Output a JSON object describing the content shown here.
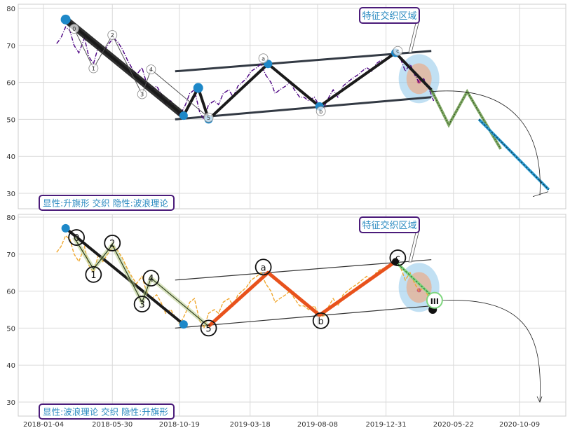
{
  "chart_data": [
    {
      "type": "line",
      "panel": "top",
      "title": "",
      "annotation_box": "显性:升旗形 交织 隐性:波浪理论",
      "callout": "特征交织区域",
      "ylim": [
        26,
        81
      ],
      "y_ticks": [
        30,
        40,
        50,
        60,
        70,
        80
      ],
      "grid": true,
      "series": [
        {
          "role": "price",
          "style": "dash-dot",
          "color": "#4b0082",
          "x": [
            "2018-02-01",
            "2018-02-10",
            "2018-02-20",
            "2018-03-01",
            "2018-03-10",
            "2018-03-20",
            "2018-04-01",
            "2018-04-10",
            "2018-04-20",
            "2018-05-01",
            "2018-05-10",
            "2018-05-20",
            "2018-06-01",
            "2018-06-10",
            "2018-06-20",
            "2018-07-01",
            "2018-07-10",
            "2018-07-20",
            "2018-08-01",
            "2018-08-10",
            "2018-08-20",
            "2018-09-01",
            "2018-09-10",
            "2018-09-20",
            "2018-10-01",
            "2018-10-10",
            "2018-10-20",
            "2018-11-01",
            "2018-11-10",
            "2018-11-20",
            "2018-12-01",
            "2018-12-10",
            "2018-12-20",
            "2019-01-01",
            "2019-01-10",
            "2019-01-20",
            "2019-02-01",
            "2019-02-10",
            "2019-02-20",
            "2019-03-01",
            "2019-03-10",
            "2019-03-20",
            "2019-04-01",
            "2019-04-10",
            "2019-04-20",
            "2019-05-01",
            "2019-05-10",
            "2019-05-20",
            "2019-06-01",
            "2019-06-10",
            "2019-06-20",
            "2019-07-01",
            "2019-07-10",
            "2019-07-20",
            "2019-08-01",
            "2019-08-10",
            "2019-08-20",
            "2019-09-01",
            "2019-09-10",
            "2019-09-20",
            "2019-10-01",
            "2019-10-10",
            "2019-10-20",
            "2019-11-01",
            "2019-11-10",
            "2019-11-20",
            "2019-12-01",
            "2019-12-10",
            "2019-12-20",
            "2020-01-01",
            "2020-01-10",
            "2020-01-20",
            "2020-02-01",
            "2020-02-10",
            "2020-02-20",
            "2020-03-01",
            "2020-03-10",
            "2020-03-20",
            "2020-04-01",
            "2020-04-10"
          ],
          "y": [
            70.5,
            72,
            75,
            74,
            70,
            68,
            72,
            67,
            65,
            70,
            68,
            70,
            72,
            71,
            69,
            66,
            64,
            62,
            64,
            60,
            58,
            59,
            57,
            54,
            55,
            53,
            51,
            54,
            57,
            58,
            52,
            50,
            54,
            55,
            54,
            57,
            58,
            56,
            59,
            60,
            61,
            63,
            64,
            65,
            62,
            60,
            57,
            58,
            59,
            60,
            58,
            56,
            56,
            55,
            56,
            54,
            53,
            56,
            58,
            56,
            59,
            60,
            61,
            62,
            63,
            64,
            63,
            65,
            66,
            66,
            67,
            68,
            66,
            63,
            65,
            62,
            60,
            61,
            58,
            55
          ]
        },
        {
          "role": "wave_path",
          "style": "thick",
          "color": "#1a1a1a",
          "x": [
            "2018-02-20",
            "2018-10-28",
            "2018-11-28",
            "2018-12-20",
            "2019-04-25",
            "2019-08-12",
            "2020-01-20",
            "2020-04-05"
          ],
          "y": [
            77,
            51,
            58.5,
            50,
            65,
            53.5,
            68,
            58
          ]
        },
        {
          "role": "flag_upper",
          "color": "#333a44",
          "x": [
            "2018-10-10",
            "2020-04-05"
          ],
          "y": [
            63,
            68.5
          ]
        },
        {
          "role": "flag_lower",
          "color": "#333a44",
          "x": [
            "2018-10-10",
            "2020-04-05"
          ],
          "y": [
            50,
            56
          ]
        },
        {
          "role": "projection_green",
          "style": "dotted",
          "color": "#a0c878",
          "x": [
            "2020-04-05",
            "2020-05-12",
            "2020-06-20",
            "2020-08-30"
          ],
          "y": [
            58,
            48.5,
            57.5,
            42
          ]
        },
        {
          "role": "projection_blue",
          "style": "dashed",
          "color": "#2b9bd1",
          "x": [
            "2020-07-15",
            "2020-12-10"
          ],
          "y": [
            50,
            31
          ]
        }
      ],
      "points": [
        {
          "x": "2018-02-20",
          "y": 76.8,
          "label": ""
        },
        {
          "x": "2018-03-10",
          "y": 74.5,
          "label": "0"
        },
        {
          "x": "2018-04-20",
          "y": 63.8,
          "label": "1"
        },
        {
          "x": "2018-05-30",
          "y": 72.8,
          "label": "2"
        },
        {
          "x": "2018-08-01",
          "y": 56.8,
          "label": "3"
        },
        {
          "x": "2018-08-20",
          "y": 63.5,
          "label": "4"
        },
        {
          "x": "2018-12-20",
          "y": 50.5,
          "label": "5"
        },
        {
          "x": "2019-04-15",
          "y": 66.5,
          "label": "a"
        },
        {
          "x": "2019-08-15",
          "y": 52.2,
          "label": "b"
        },
        {
          "x": "2020-01-25",
          "y": 68.5,
          "label": "c"
        }
      ]
    },
    {
      "type": "line",
      "panel": "bottom",
      "title": "",
      "annotation_box": "显性:波浪理论 交织 隐性:升旗形",
      "callout": "特征交织区域",
      "ylim": [
        26,
        81
      ],
      "y_ticks": [
        30,
        40,
        50,
        60,
        70,
        80
      ],
      "x_ticks": [
        "2018-01-04",
        "2018-05-30",
        "2018-10-19",
        "2019-03-18",
        "2019-08-08",
        "2019-12-31",
        "2020-05-22",
        "2020-10-09"
      ],
      "grid": true,
      "series": [
        {
          "role": "price",
          "style": "dashed",
          "color": "#f0a830",
          "x": [
            "2018-02-01",
            "2018-02-10",
            "2018-02-20",
            "2018-03-01",
            "2018-03-10",
            "2018-03-20",
            "2018-04-01",
            "2018-04-10",
            "2018-04-20",
            "2018-05-01",
            "2018-05-10",
            "2018-05-20",
            "2018-06-01",
            "2018-06-10",
            "2018-06-20",
            "2018-07-01",
            "2018-07-10",
            "2018-07-20",
            "2018-08-01",
            "2018-08-10",
            "2018-08-20",
            "2018-09-01",
            "2018-09-10",
            "2018-09-20",
            "2018-10-01",
            "2018-10-10",
            "2018-10-20",
            "2018-11-01",
            "2018-11-10",
            "2018-11-20",
            "2018-12-01",
            "2018-12-10",
            "2018-12-20",
            "2019-01-01",
            "2019-01-10",
            "2019-01-20",
            "2019-02-01",
            "2019-02-10",
            "2019-02-20",
            "2019-03-01",
            "2019-03-10",
            "2019-03-20",
            "2019-04-01",
            "2019-04-10",
            "2019-04-20",
            "2019-05-01",
            "2019-05-10",
            "2019-05-20",
            "2019-06-01",
            "2019-06-10",
            "2019-06-20",
            "2019-07-01",
            "2019-07-10",
            "2019-07-20",
            "2019-08-01",
            "2019-08-10",
            "2019-08-20",
            "2019-09-01",
            "2019-09-10",
            "2019-09-20",
            "2019-10-01",
            "2019-10-10",
            "2019-10-20",
            "2019-11-01",
            "2019-11-10",
            "2019-11-20",
            "2019-12-01",
            "2019-12-10",
            "2019-12-20",
            "2020-01-01",
            "2020-01-10",
            "2020-01-20",
            "2020-02-01",
            "2020-02-10",
            "2020-02-20",
            "2020-03-01",
            "2020-03-10",
            "2020-03-20",
            "2020-04-01",
            "2020-04-10"
          ],
          "y": [
            70.5,
            72,
            75,
            74,
            70,
            68,
            72,
            67,
            65,
            70,
            68,
            70,
            72,
            71,
            69,
            66,
            64,
            62,
            64,
            60,
            58,
            59,
            57,
            54,
            55,
            53,
            51,
            54,
            57,
            58,
            52,
            50,
            54,
            55,
            54,
            57,
            58,
            56,
            59,
            60,
            61,
            63,
            64,
            65,
            62,
            60,
            57,
            58,
            59,
            60,
            58,
            56,
            56,
            55,
            56,
            54,
            53,
            56,
            58,
            56,
            59,
            60,
            61,
            62,
            63,
            64,
            63,
            65,
            66,
            66,
            67,
            68,
            66,
            63,
            65,
            62,
            60,
            61,
            58,
            55
          ]
        },
        {
          "role": "impulse_path",
          "color": "#1a1a1a",
          "x": [
            "2018-02-20",
            "2018-10-28"
          ],
          "y": [
            77,
            51
          ]
        },
        {
          "role": "wave_path_olive",
          "color": "#2a3a1a",
          "x": [
            "2018-03-10",
            "2018-04-20",
            "2018-05-30",
            "2018-08-01",
            "2018-08-20",
            "2018-12-20"
          ],
          "y": [
            74.5,
            66,
            72.5,
            57,
            63.5,
            50.5
          ]
        },
        {
          "role": "corrective_path",
          "color": "#e8521c",
          "x": [
            "2018-12-20",
            "2019-04-25",
            "2019-08-12",
            "2020-01-20"
          ],
          "y": [
            50.5,
            65,
            53.5,
            68
          ]
        },
        {
          "role": "flag_upper",
          "color": "#333333",
          "x": [
            "2018-10-10",
            "2020-04-05"
          ],
          "y": [
            63,
            68.5
          ]
        },
        {
          "role": "flag_lower",
          "color": "#333333",
          "x": [
            "2018-10-10",
            "2020-04-05"
          ],
          "y": [
            50,
            56
          ]
        },
        {
          "role": "projection_green",
          "color": "#90e090",
          "x": [
            "2020-01-20",
            "2020-04-12"
          ],
          "y": [
            68,
            58
          ]
        }
      ],
      "points": [
        {
          "x": "2018-02-20",
          "y": 77,
          "label": ""
        },
        {
          "x": "2018-03-15",
          "y": 74.5,
          "label": "0"
        },
        {
          "x": "2018-04-20",
          "y": 64.5,
          "label": "1"
        },
        {
          "x": "2018-05-30",
          "y": 73,
          "label": "2"
        },
        {
          "x": "2018-08-01",
          "y": 56.5,
          "label": "3"
        },
        {
          "x": "2018-08-20",
          "y": 63.5,
          "label": "4"
        },
        {
          "x": "2018-12-20",
          "y": 50,
          "label": "5"
        },
        {
          "x": "2019-04-15",
          "y": 66.5,
          "label": "a"
        },
        {
          "x": "2019-08-15",
          "y": 52,
          "label": "b"
        },
        {
          "x": "2020-01-25",
          "y": 69,
          "label": "c"
        },
        {
          "x": "2020-04-12",
          "y": 57.5,
          "label": "III"
        }
      ]
    }
  ]
}
